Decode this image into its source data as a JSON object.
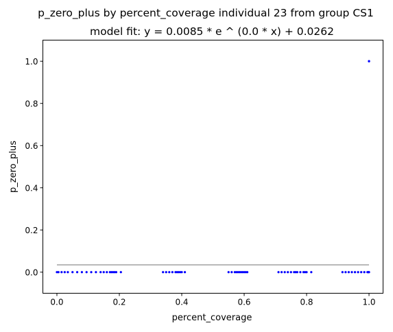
{
  "chart_data": {
    "type": "scatter",
    "title": "p_zero_plus by percent_coverage individual 23 from group CS1",
    "subtitle": "model fit: y = 0.0085 * e ^ (0.0 * x) + 0.0262",
    "xlabel": "percent_coverage",
    "ylabel": "p_zero_plus",
    "xlim": [
      -0.045,
      1.045
    ],
    "ylim": [
      -0.1,
      1.1
    ],
    "xticks": [
      0.0,
      0.2,
      0.4,
      0.6,
      0.8,
      1.0
    ],
    "xtick_labels": [
      "0.0",
      "0.2",
      "0.4",
      "0.6",
      "0.8",
      "1.0"
    ],
    "yticks": [
      0.0,
      0.2,
      0.4,
      0.6,
      0.8,
      1.0
    ],
    "ytick_labels": [
      "0.0",
      "0.2",
      "0.4",
      "0.6",
      "0.8",
      "1.0"
    ],
    "grid": false,
    "series": [
      {
        "kind": "scatter",
        "color": "#0000ff",
        "x": [
          0.0,
          0.005,
          0.015,
          0.025,
          0.035,
          0.05,
          0.065,
          0.08,
          0.095,
          0.11,
          0.125,
          0.14,
          0.15,
          0.16,
          0.17,
          0.175,
          0.18,
          0.185,
          0.19,
          0.205,
          0.34,
          0.35,
          0.36,
          0.37,
          0.38,
          0.385,
          0.39,
          0.395,
          0.4,
          0.41,
          0.55,
          0.56,
          0.57,
          0.575,
          0.58,
          0.585,
          0.59,
          0.595,
          0.6,
          0.605,
          0.61,
          0.71,
          0.72,
          0.73,
          0.74,
          0.75,
          0.76,
          0.765,
          0.77,
          0.78,
          0.79,
          0.795,
          0.8,
          0.815,
          0.915,
          0.925,
          0.935,
          0.945,
          0.955,
          0.965,
          0.975,
          0.985,
          0.995,
          0.998,
          1.0,
          1.0,
          1.0
        ],
        "y": [
          0,
          0,
          0,
          0,
          0,
          0,
          0,
          0,
          0,
          0,
          0,
          0,
          0,
          0,
          0,
          0,
          0,
          0,
          0,
          0,
          0,
          0,
          0,
          0,
          0,
          0,
          0,
          0,
          0,
          0,
          0,
          0,
          0,
          0,
          0,
          0,
          0,
          0,
          0,
          0,
          0,
          0,
          0,
          0,
          0,
          0,
          0,
          0,
          0,
          0,
          0,
          0,
          0,
          0,
          0,
          0,
          0,
          0,
          0,
          0,
          0,
          0,
          0,
          0,
          0,
          1.0,
          1.0
        ]
      },
      {
        "kind": "line",
        "color": "#a0a0a0",
        "model": {
          "a": 0.0085,
          "b": 0.0,
          "c": 0.0262
        },
        "x": [
          0.0,
          0.25,
          0.5,
          0.75,
          1.0
        ],
        "y": [
          0.0347,
          0.0347,
          0.0347,
          0.0347,
          0.0347
        ]
      }
    ]
  }
}
